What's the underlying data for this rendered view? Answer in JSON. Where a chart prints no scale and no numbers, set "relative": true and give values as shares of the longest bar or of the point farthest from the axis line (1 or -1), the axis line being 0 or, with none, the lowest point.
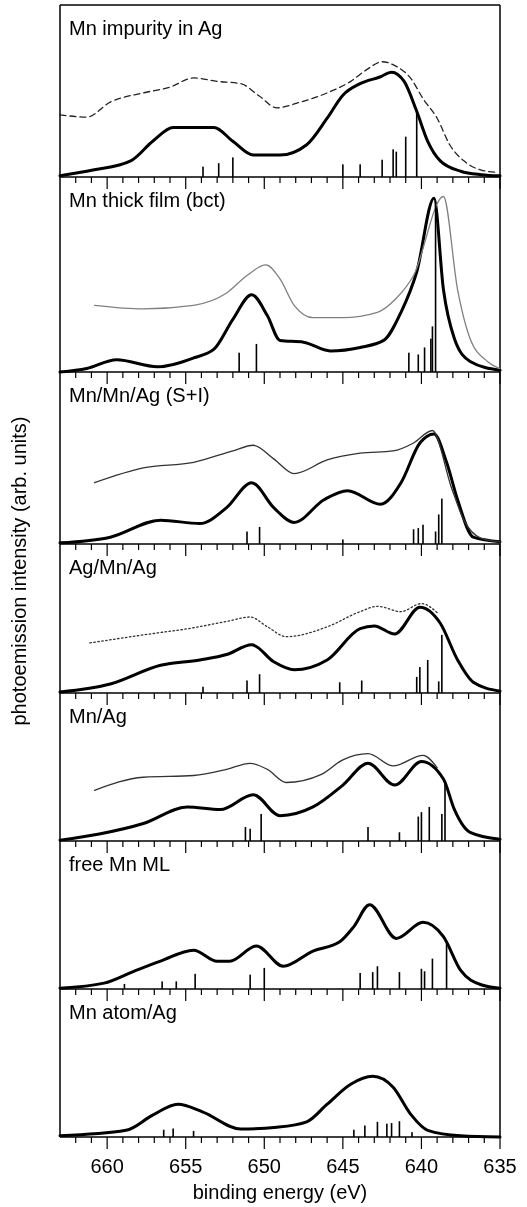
{
  "chart_data": [
    {
      "type": "line",
      "title": "Mn impurity in Ag",
      "relative": true,
      "xlim": [
        663,
        635
      ],
      "tick_labels": false,
      "xticks": [
        {
          "value": 662,
          "label": null
        },
        {
          "value": 661,
          "label": null
        },
        660,
        {
          "value": 659,
          "label": null
        },
        {
          "value": 658,
          "label": null
        },
        {
          "value": 657,
          "label": null
        },
        {
          "value": 656,
          "label": null
        },
        655,
        {
          "value": 654,
          "label": null
        },
        {
          "value": 653,
          "label": null
        },
        {
          "value": 652,
          "label": null
        },
        {
          "value": 651,
          "label": null
        },
        650,
        {
          "value": 649,
          "label": null
        },
        {
          "value": 648,
          "label": null
        },
        {
          "value": 647,
          "label": null
        },
        {
          "value": 646,
          "label": null
        },
        645,
        {
          "value": 644,
          "label": null
        },
        {
          "value": 643,
          "label": null
        },
        {
          "value": 642,
          "label": null
        },
        {
          "value": 641,
          "label": null
        },
        640,
        {
          "value": 639,
          "label": null
        },
        {
          "value": 638,
          "label": null
        },
        {
          "value": 637,
          "label": null
        },
        {
          "value": 636,
          "label": null
        },
        635
      ],
      "series": [
        {
          "color": "#000000",
          "x": [
            663,
            660.9,
            658.5,
            657.1,
            655.8,
            654.5,
            653.2,
            652.0,
            650.7,
            649.0,
            647.3,
            646.0,
            645.0,
            643.9,
            642.6,
            641.9,
            641.1,
            640.3,
            639.6,
            638.8,
            637.5,
            636.2,
            635
          ],
          "values": [
            0.01,
            0.06,
            0.14,
            0.31,
            0.43,
            0.43,
            0.43,
            0.31,
            0.19,
            0.19,
            0.28,
            0.51,
            0.71,
            0.81,
            0.87,
            0.91,
            0.83,
            0.57,
            0.31,
            0.14,
            0.05,
            0.02,
            0.01
          ]
        },
        {
          "color": "#222222",
          "line_style": "dashed",
          "x": [
            663,
            661.3,
            659.8,
            657.7,
            656.0,
            654.5,
            653.0,
            651.5,
            650.3,
            649.2,
            647.7,
            646.0,
            644.5,
            643.5,
            642.5,
            641.6,
            640.7,
            639.9,
            639.0,
            638.2,
            637.3,
            636.2,
            635.2
          ],
          "values": [
            0.54,
            0.52,
            0.65,
            0.73,
            0.78,
            0.86,
            0.83,
            0.81,
            0.7,
            0.6,
            0.65,
            0.73,
            0.83,
            0.93,
            1,
            0.96,
            0.86,
            0.68,
            0.51,
            0.28,
            0.14,
            0.06,
            0.04
          ]
        },
        {
          "type": "bar",
          "color": "#000000",
          "x": [
            640.3,
            641.0,
            641.6,
            641.8,
            642.5,
            643.9,
            645.0,
            652.0,
            652.9,
            653.9
          ],
          "values": [
            0.57,
            0.35,
            0.22,
            0.24,
            0.15,
            0.11,
            0.11,
            0.17,
            0.12,
            0.09
          ]
        }
      ]
    },
    {
      "type": "line",
      "title": "Mn thick film (bct)",
      "relative": true,
      "xlim": [
        663,
        635
      ],
      "tick_labels": false,
      "xticks": [
        {
          "value": 662,
          "label": null
        },
        {
          "value": 661,
          "label": null
        },
        660,
        {
          "value": 659,
          "label": null
        },
        {
          "value": 658,
          "label": null
        },
        {
          "value": 657,
          "label": null
        },
        {
          "value": 656,
          "label": null
        },
        655,
        {
          "value": 654,
          "label": null
        },
        {
          "value": 653,
          "label": null
        },
        {
          "value": 652,
          "label": null
        },
        {
          "value": 651,
          "label": null
        },
        650,
        {
          "value": 649,
          "label": null
        },
        {
          "value": 648,
          "label": null
        },
        {
          "value": 647,
          "label": null
        },
        {
          "value": 646,
          "label": null
        },
        645,
        {
          "value": 644,
          "label": null
        },
        {
          "value": 643,
          "label": null
        },
        {
          "value": 642,
          "label": null
        },
        {
          "value": 641,
          "label": null
        },
        640,
        {
          "value": 639,
          "label": null
        },
        {
          "value": 638,
          "label": null
        },
        {
          "value": 637,
          "label": null
        },
        {
          "value": 636,
          "label": null
        },
        635
      ],
      "series": [
        {
          "color": "#000000",
          "x": [
            663,
            661.3,
            659.4,
            656.8,
            654.5,
            653.2,
            652.0,
            650.8,
            649.8,
            649.0,
            647.5,
            645.8,
            643.9,
            642.4,
            641.3,
            640.3,
            639.2,
            638.6,
            637.9,
            636.9,
            635
          ],
          "values": [
            0.0,
            0.02,
            0.07,
            0.03,
            0.08,
            0.13,
            0.3,
            0.44,
            0.32,
            0.18,
            0.17,
            0.12,
            0.14,
            0.18,
            0.34,
            0.57,
            0.99,
            0.47,
            0.19,
            0.06,
            0.01
          ]
        },
        {
          "color": "#808080",
          "x": [
            660.8,
            657.7,
            654.5,
            652.4,
            651.1,
            649.9,
            649.0,
            648.1,
            646.9,
            645.0,
            642.8,
            641.6,
            640.5,
            638.6,
            637.7,
            636.9,
            635.8,
            635
          ],
          "values": [
            0.38,
            0.36,
            0.38,
            0.45,
            0.55,
            0.61,
            0.53,
            0.38,
            0.31,
            0.31,
            0.34,
            0.42,
            0.55,
            1,
            0.47,
            0.19,
            0.06,
            0.02
          ]
        },
        {
          "type": "bar",
          "color": "#000000",
          "x": [
            639.1,
            639.3,
            639.4,
            639.8,
            640.2,
            640.8,
            650.5,
            651.6
          ],
          "values": [
            0.95,
            0.26,
            0.19,
            0.14,
            0.1,
            0.11,
            0.16,
            0.11
          ]
        }
      ]
    },
    {
      "type": "line",
      "title": "Mn/Mn/Ag (S+I)",
      "relative": true,
      "xlim": [
        663,
        635
      ],
      "tick_labels": false,
      "xticks": [
        {
          "value": 662,
          "label": null
        },
        {
          "value": 661,
          "label": null
        },
        660,
        {
          "value": 659,
          "label": null
        },
        {
          "value": 658,
          "label": null
        },
        {
          "value": 657,
          "label": null
        },
        {
          "value": 656,
          "label": null
        },
        655,
        {
          "value": 654,
          "label": null
        },
        {
          "value": 653,
          "label": null
        },
        {
          "value": 652,
          "label": null
        },
        {
          "value": 651,
          "label": null
        },
        650,
        {
          "value": 649,
          "label": null
        },
        {
          "value": 648,
          "label": null
        },
        {
          "value": 647,
          "label": null
        },
        {
          "value": 646,
          "label": null
        },
        645,
        {
          "value": 644,
          "label": null
        },
        {
          "value": 643,
          "label": null
        },
        {
          "value": 642,
          "label": null
        },
        {
          "value": 641,
          "label": null
        },
        640,
        {
          "value": 639,
          "label": null
        },
        {
          "value": 638,
          "label": null
        },
        {
          "value": 637,
          "label": null
        },
        {
          "value": 636,
          "label": null
        },
        635
      ],
      "series": [
        {
          "color": "#000000",
          "x": [
            663,
            659.8,
            656.6,
            654.1,
            652.4,
            650.8,
            649.4,
            648.1,
            646.2,
            644.7,
            642.6,
            641.3,
            640.1,
            639.2,
            638.4,
            637.7,
            636.7,
            635
          ],
          "values": [
            0.01,
            0.06,
            0.21,
            0.18,
            0.32,
            0.54,
            0.32,
            0.19,
            0.39,
            0.47,
            0.35,
            0.54,
            0.89,
            0.97,
            0.72,
            0.39,
            0.06,
            0.02
          ]
        },
        {
          "color": "#333333",
          "x": [
            660.8,
            657.7,
            654.5,
            652.0,
            650.7,
            649.4,
            648.1,
            646.0,
            643.9,
            641.8,
            640.5,
            639.3,
            638.1,
            637.3,
            636.2,
            635
          ],
          "values": [
            0.54,
            0.67,
            0.72,
            0.82,
            0.87,
            0.75,
            0.62,
            0.74,
            0.8,
            0.82,
            0.89,
            1,
            0.5,
            0.21,
            0.05,
            0.02
          ]
        },
        {
          "type": "bar",
          "color": "#000000",
          "x": [
            638.7,
            638.9,
            639.1,
            639.9,
            640.2,
            640.5,
            645.0,
            650.3,
            651.1
          ],
          "values": [
            0.4,
            0.26,
            0.11,
            0.17,
            0.14,
            0.13,
            0.04,
            0.15,
            0.11
          ]
        }
      ]
    },
    {
      "type": "line",
      "title": "Ag/Mn/Ag",
      "ylabel": "photoemission intensity (arb. units)",
      "relative": true,
      "xlim": [
        663,
        635
      ],
      "tick_labels": false,
      "xticks": [
        {
          "value": 662,
          "label": null
        },
        {
          "value": 661,
          "label": null
        },
        660,
        {
          "value": 659,
          "label": null
        },
        {
          "value": 658,
          "label": null
        },
        {
          "value": 657,
          "label": null
        },
        {
          "value": 656,
          "label": null
        },
        655,
        {
          "value": 654,
          "label": null
        },
        {
          "value": 653,
          "label": null
        },
        {
          "value": 652,
          "label": null
        },
        {
          "value": 651,
          "label": null
        },
        650,
        {
          "value": 649,
          "label": null
        },
        {
          "value": 648,
          "label": null
        },
        {
          "value": 647,
          "label": null
        },
        {
          "value": 646,
          "label": null
        },
        645,
        {
          "value": 644,
          "label": null
        },
        {
          "value": 643,
          "label": null
        },
        {
          "value": 642,
          "label": null
        },
        {
          "value": 641,
          "label": null
        },
        640,
        {
          "value": 639,
          "label": null
        },
        {
          "value": 638,
          "label": null
        },
        {
          "value": 637,
          "label": null
        },
        {
          "value": 636,
          "label": null
        },
        635
      ],
      "series": [
        {
          "color": "#000000",
          "x": [
            663,
            659.8,
            656.6,
            654.1,
            652.4,
            650.8,
            649.4,
            648.1,
            646.0,
            643.9,
            643.0,
            641.7,
            640.1,
            638.8,
            637.7,
            636.7,
            635
          ],
          "values": [
            0.01,
            0.1,
            0.31,
            0.37,
            0.43,
            0.54,
            0.35,
            0.26,
            0.37,
            0.72,
            0.75,
            0.66,
            0.96,
            0.78,
            0.37,
            0.12,
            0.02
          ]
        },
        {
          "color": "#333333",
          "line_style": "dotted",
          "x": [
            661.1,
            657.7,
            654.5,
            652.4,
            650.9,
            649.8,
            648.6,
            646.0,
            643.9,
            642.8,
            641.3,
            640.0,
            639.0
          ],
          "values": [
            0.56,
            0.65,
            0.73,
            0.8,
            0.85,
            0.74,
            0.63,
            0.74,
            0.91,
            0.97,
            0.91,
            1,
            0.9
          ]
        },
        {
          "type": "bar",
          "color": "#000000",
          "x": [
            638.7,
            638.9,
            639.6,
            640.1,
            640.3,
            643.8,
            645.2,
            650.3,
            651.1,
            653.9
          ],
          "values": [
            0.65,
            0.13,
            0.37,
            0.29,
            0.18,
            0.14,
            0.12,
            0.21,
            0.14,
            0.07
          ]
        }
      ]
    },
    {
      "type": "line",
      "title": "Mn/Ag",
      "relative": true,
      "xlim": [
        663,
        635
      ],
      "tick_labels": false,
      "xticks": [
        {
          "value": 662,
          "label": null
        },
        {
          "value": 661,
          "label": null
        },
        660,
        {
          "value": 659,
          "label": null
        },
        {
          "value": 658,
          "label": null
        },
        {
          "value": 657,
          "label": null
        },
        {
          "value": 656,
          "label": null
        },
        655,
        {
          "value": 654,
          "label": null
        },
        {
          "value": 653,
          "label": null
        },
        {
          "value": 652,
          "label": null
        },
        {
          "value": 651,
          "label": null
        },
        650,
        {
          "value": 649,
          "label": null
        },
        {
          "value": 648,
          "label": null
        },
        {
          "value": 647,
          "label": null
        },
        {
          "value": 646,
          "label": null
        },
        645,
        {
          "value": 644,
          "label": null
        },
        {
          "value": 643,
          "label": null
        },
        {
          "value": 642,
          "label": null
        },
        {
          "value": 641,
          "label": null
        },
        640,
        {
          "value": 639,
          "label": null
        },
        {
          "value": 638,
          "label": null
        },
        {
          "value": 637,
          "label": null
        },
        {
          "value": 636,
          "label": null
        },
        635
      ],
      "series": [
        {
          "color": "#000000",
          "x": [
            663,
            660.5,
            657.7,
            654.9,
            652.8,
            650.7,
            649.0,
            646.9,
            645.0,
            643.4,
            641.7,
            640.0,
            638.6,
            637.9,
            636.9,
            635
          ],
          "values": [
            0.01,
            0.08,
            0.2,
            0.39,
            0.36,
            0.53,
            0.29,
            0.39,
            0.64,
            0.89,
            0.64,
            0.91,
            0.71,
            0.36,
            0.1,
            0.02
          ]
        },
        {
          "color": "#333333",
          "x": [
            660.8,
            657.7,
            654.5,
            652.4,
            650.9,
            649.8,
            648.6,
            646.4,
            645.0,
            643.4,
            641.8,
            639.9,
            639.0
          ],
          "values": [
            0.58,
            0.73,
            0.75,
            0.82,
            0.89,
            0.82,
            0.67,
            0.76,
            0.93,
            1,
            0.86,
            0.98,
            0.84
          ]
        },
        {
          "type": "bar",
          "color": "#000000",
          "x": [
            638.5,
            638.7,
            639.5,
            640.0,
            640.2,
            641.4,
            643.4,
            650.2,
            650.9,
            651.2
          ],
          "values": [
            0.66,
            0.31,
            0.39,
            0.33,
            0.28,
            0.1,
            0.16,
            0.31,
            0.14,
            0.16
          ]
        }
      ]
    },
    {
      "type": "line",
      "title": "free Mn ML",
      "relative": true,
      "xlim": [
        663,
        635
      ],
      "tick_labels": false,
      "xticks": [
        {
          "value": 662,
          "label": null
        },
        {
          "value": 661,
          "label": null
        },
        660,
        {
          "value": 659,
          "label": null
        },
        {
          "value": 658,
          "label": null
        },
        {
          "value": 657,
          "label": null
        },
        {
          "value": 656,
          "label": null
        },
        655,
        {
          "value": 654,
          "label": null
        },
        {
          "value": 653,
          "label": null
        },
        {
          "value": 652,
          "label": null
        },
        {
          "value": 651,
          "label": null
        },
        650,
        {
          "value": 649,
          "label": null
        },
        {
          "value": 648,
          "label": null
        },
        {
          "value": 647,
          "label": null
        },
        {
          "value": 646,
          "label": null
        },
        645,
        {
          "value": 644,
          "label": null
        },
        {
          "value": 643,
          "label": null
        },
        {
          "value": 642,
          "label": null
        },
        {
          "value": 641,
          "label": null
        },
        640,
        {
          "value": 639,
          "label": null
        },
        {
          "value": 638,
          "label": null
        },
        {
          "value": 637,
          "label": null
        },
        {
          "value": 636,
          "label": null
        },
        635
      ],
      "series": [
        {
          "color": "#000000",
          "x": [
            663,
            660.2,
            658.3,
            656.6,
            654.5,
            653.0,
            652.2,
            650.5,
            648.8,
            646.9,
            645.2,
            644.3,
            643.3,
            641.6,
            639.9,
            638.6,
            637.5,
            636.2,
            635
          ],
          "values": [
            0.01,
            0.07,
            0.21,
            0.33,
            0.46,
            0.33,
            0.33,
            0.51,
            0.27,
            0.45,
            0.56,
            0.74,
            1,
            0.6,
            0.79,
            0.62,
            0.22,
            0.05,
            0.01
          ]
        },
        {
          "type": "bar",
          "color": "#000000",
          "x": [
            638.4,
            639.3,
            639.8,
            640.0,
            641.4,
            642.8,
            643.1,
            643.9,
            650.0,
            650.9,
            654.4,
            655.6,
            656.5,
            658.9
          ],
          "values": [
            0.54,
            0.36,
            0.21,
            0.24,
            0.2,
            0.27,
            0.2,
            0.19,
            0.25,
            0.17,
            0.18,
            0.09,
            0.09,
            0.06
          ]
        }
      ]
    },
    {
      "type": "line",
      "title": "Mn atom/Ag",
      "xlabel": "binding energy (eV)",
      "relative": true,
      "xlim": [
        663,
        635
      ],
      "tick_labels": "x",
      "xticks": [
        {
          "value": 662,
          "label": null
        },
        {
          "value": 661,
          "label": null
        },
        660,
        {
          "value": 659,
          "label": null
        },
        {
          "value": 658,
          "label": null
        },
        {
          "value": 657,
          "label": null
        },
        {
          "value": 656,
          "label": null
        },
        655,
        {
          "value": 654,
          "label": null
        },
        {
          "value": 653,
          "label": null
        },
        {
          "value": 652,
          "label": null
        },
        {
          "value": 651,
          "label": null
        },
        650,
        {
          "value": 649,
          "label": null
        },
        {
          "value": 648,
          "label": null
        },
        {
          "value": 647,
          "label": null
        },
        {
          "value": 646,
          "label": null
        },
        645,
        {
          "value": 644,
          "label": null
        },
        {
          "value": 643,
          "label": null
        },
        {
          "value": 642,
          "label": null
        },
        {
          "value": 641,
          "label": null
        },
        640,
        {
          "value": 639,
          "label": null
        },
        {
          "value": 638,
          "label": null
        },
        {
          "value": 637,
          "label": null
        },
        {
          "value": 636,
          "label": null
        },
        635
      ],
      "series": [
        {
          "color": "#000000",
          "x": [
            663,
            658.8,
            657.1,
            655.5,
            653.9,
            651.5,
            649.2,
            647.3,
            646.0,
            644.5,
            643.1,
            641.8,
            640.7,
            639.6,
            637.5,
            635
          ],
          "values": [
            0.02,
            0.11,
            0.36,
            0.54,
            0.41,
            0.13,
            0.16,
            0.25,
            0.54,
            0.87,
            1,
            0.82,
            0.38,
            0.11,
            0.02,
            0.0
          ]
        },
        {
          "type": "bar",
          "color": "#000000",
          "x": [
            640.6,
            641.4,
            641.9,
            642.2,
            642.8,
            643.6,
            644.3,
            654.5,
            655.8,
            656.4
          ],
          "values": [
            0.08,
            0.26,
            0.23,
            0.22,
            0.25,
            0.19,
            0.12,
            0.1,
            0.14,
            0.12
          ]
        }
      ]
    }
  ]
}
